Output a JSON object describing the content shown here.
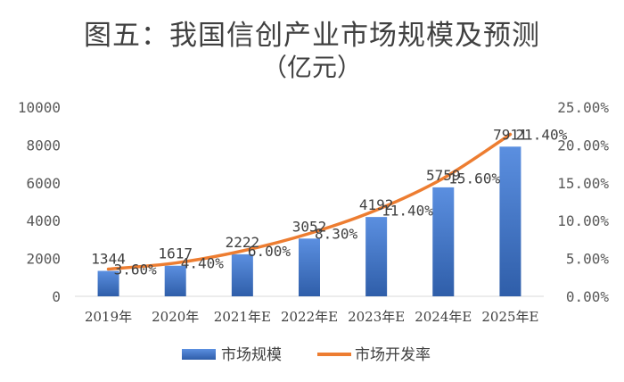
{
  "chart_data": {
    "type": "bar+line",
    "title": "图五：我国信创产业市场规模及预测",
    "subtitle": "（亿元）",
    "categories": [
      "2019年",
      "2020年",
      "2021年E",
      "2022年E",
      "2023年E",
      "2024年E",
      "2025年E"
    ],
    "series": [
      {
        "name": "市场规模",
        "type": "bar",
        "axis": "left",
        "color": "#4472C4",
        "values": [
          1344,
          1617,
          2222,
          3052,
          4192,
          5759,
          7911
        ],
        "labels": [
          "1344",
          "1617",
          "2222",
          "3052",
          "4192",
          "5759",
          "7911"
        ]
      },
      {
        "name": "市场开发率",
        "type": "line",
        "axis": "right",
        "color": "#ED7D31",
        "values": [
          3.6,
          4.4,
          6.0,
          8.3,
          11.4,
          15.6,
          21.4
        ],
        "labels": [
          "3.60%",
          "4.40%",
          "6.00%",
          "8.30%",
          "11.40%",
          "15.60%",
          "21.40%"
        ]
      }
    ],
    "y_left": {
      "min": 0,
      "max": 10000,
      "ticks": [
        "0",
        "2000",
        "4000",
        "6000",
        "8000",
        "10000"
      ]
    },
    "y_right": {
      "min": 0,
      "max": 25,
      "ticks": [
        "0.00%",
        "5.00%",
        "10.00%",
        "15.00%",
        "20.00%",
        "25.00%"
      ]
    },
    "legend_position": "bottom",
    "grid": false
  }
}
